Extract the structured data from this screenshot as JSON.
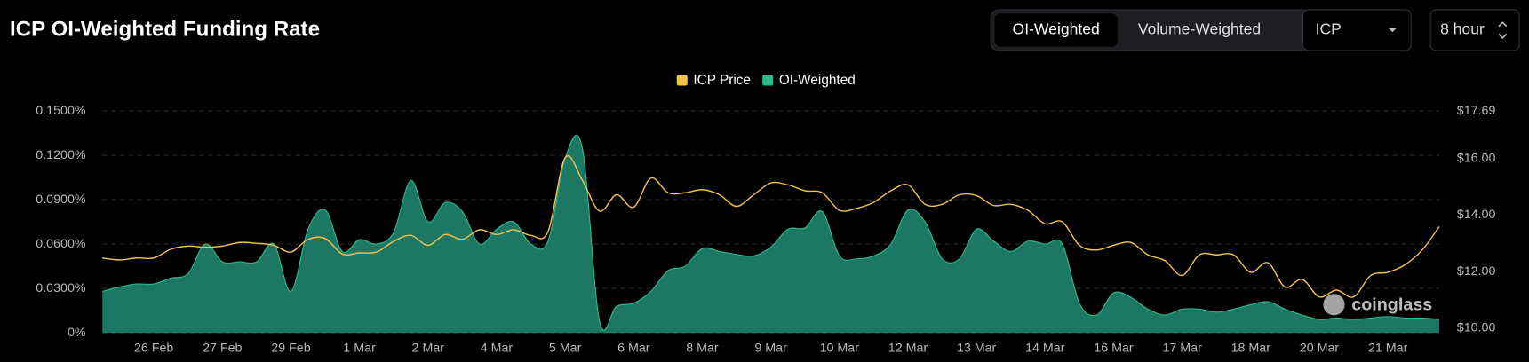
{
  "header": {
    "title": "ICP OI-Weighted Funding Rate"
  },
  "controls": {
    "toggle": [
      "OI-Weighted",
      "Volume-Weighted"
    ],
    "symbol": "ICP",
    "interval": "8 hour"
  },
  "chart_data": {
    "type": "area-line",
    "watermark": "coinglass",
    "legend": "top-center",
    "grid": true,
    "categories": [
      null,
      null,
      null,
      "26 Feb",
      null,
      null,
      null,
      "27 Feb",
      null,
      null,
      null,
      "29 Feb",
      null,
      null,
      null,
      "1 Mar",
      null,
      null,
      null,
      "2 Mar",
      null,
      null,
      null,
      "4 Mar",
      null,
      null,
      null,
      "5 Mar",
      null,
      null,
      null,
      "6 Mar",
      null,
      null,
      null,
      "8 Mar",
      null,
      null,
      null,
      "9 Mar",
      null,
      null,
      null,
      "10 Mar",
      null,
      null,
      null,
      "12 Mar",
      null,
      null,
      null,
      "13 Mar",
      null,
      null,
      null,
      "14 Mar",
      null,
      null,
      null,
      "16 Mar",
      null,
      null,
      null,
      "17 Mar",
      null,
      null,
      null,
      "18 Mar",
      null,
      null,
      null,
      "20 Mar",
      null,
      null,
      null,
      "21 Mar",
      null,
      null,
      null
    ],
    "series": [
      {
        "name": "ICP Price",
        "color": "#f0c050",
        "axis": "y2",
        "values": [
          12.48,
          12.41,
          12.48,
          12.48,
          12.79,
          12.9,
          12.86,
          12.9,
          13.03,
          13.0,
          12.93,
          12.69,
          13.14,
          13.17,
          12.62,
          12.66,
          12.69,
          13.07,
          13.28,
          12.93,
          13.31,
          13.14,
          13.48,
          13.31,
          13.48,
          13.28,
          13.41,
          16.03,
          15.24,
          14.14,
          14.72,
          14.28,
          15.31,
          14.79,
          14.79,
          14.9,
          14.72,
          14.31,
          14.72,
          15.14,
          15.07,
          14.86,
          14.79,
          14.17,
          14.24,
          14.45,
          14.86,
          15.07,
          14.38,
          14.38,
          14.72,
          14.69,
          14.34,
          14.38,
          14.17,
          13.69,
          13.76,
          12.93,
          12.76,
          12.93,
          13.03,
          12.59,
          12.38,
          11.86,
          12.59,
          12.59,
          12.59,
          11.97,
          12.31,
          11.45,
          11.72,
          11.1,
          11.34,
          11.1,
          11.86,
          11.97,
          12.24,
          12.76,
          13.59
        ]
      },
      {
        "name": "OI-Weighted",
        "color": "#2dbb8c",
        "values": [
          0.028,
          0.031,
          0.033,
          0.033,
          0.037,
          0.04,
          0.06,
          0.048,
          0.048,
          0.048,
          0.06,
          0.028,
          0.07,
          0.083,
          0.055,
          0.063,
          0.06,
          0.068,
          0.103,
          0.075,
          0.088,
          0.082,
          0.06,
          0.07,
          0.075,
          0.06,
          0.062,
          0.118,
          0.125,
          0.008,
          0.018,
          0.02,
          0.028,
          0.042,
          0.045,
          0.057,
          0.055,
          0.053,
          0.052,
          0.058,
          0.07,
          0.071,
          0.082,
          0.052,
          0.05,
          0.052,
          0.06,
          0.083,
          0.075,
          0.05,
          0.05,
          0.07,
          0.062,
          0.055,
          0.062,
          0.06,
          0.06,
          0.02,
          0.012,
          0.027,
          0.024,
          0.016,
          0.012,
          0.016,
          0.016,
          0.014,
          0.016,
          0.019,
          0.021,
          0.016,
          0.012,
          0.009,
          0.01,
          0.009,
          0.01,
          0.011,
          0.01,
          0.01,
          0.009
        ]
      }
    ],
    "ylim": [
      0,
      0.15
    ],
    "yticks": [
      {
        "value": 0,
        "label": "0%"
      },
      {
        "value": 0.03,
        "label": "0.0300%"
      },
      {
        "value": 0.06,
        "label": "0.0600%"
      },
      {
        "value": 0.09,
        "label": "0.0900%"
      },
      {
        "value": 0.12,
        "label": "0.1200%"
      },
      {
        "value": 0.15,
        "label": "0.1500%"
      }
    ],
    "y2lim": [
      10,
      17.69
    ],
    "y2ticks": [
      {
        "value": 10,
        "label": "$10.00"
      },
      {
        "value": 12,
        "label": "$12.00"
      },
      {
        "value": 14,
        "label": "$14.00"
      },
      {
        "value": 16,
        "label": "$16.00"
      },
      {
        "value": 17.69,
        "label": "$17.69"
      }
    ]
  }
}
